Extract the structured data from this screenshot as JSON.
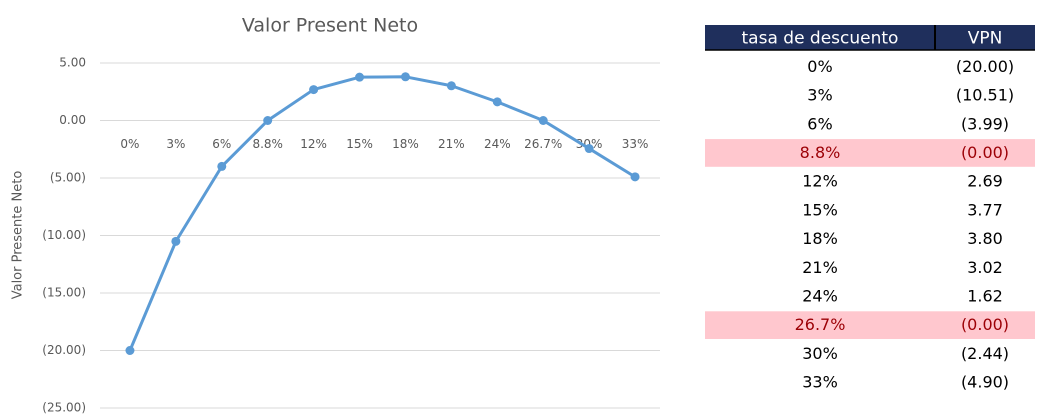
{
  "chart_data": {
    "type": "line",
    "title": "Valor Present Neto",
    "y_label": "Valor Presente Neto",
    "categories": [
      "0%",
      "3%",
      "6%",
      "8.8%",
      "12%",
      "15%",
      "18%",
      "21%",
      "24%",
      "26.7%",
      "30%",
      "33%"
    ],
    "values": [
      -20,
      -10.51,
      -3.99,
      0,
      2.69,
      3.77,
      3.8,
      3.02,
      1.62,
      0,
      -2.44,
      -4.9
    ],
    "color": "#5b9bd5",
    "ylim": [
      -25,
      5
    ],
    "yticks": [
      {
        "value": -25,
        "label": "(25.00)"
      },
      {
        "value": -20,
        "label": "(20.00)"
      },
      {
        "value": -15,
        "label": "(15.00)"
      },
      {
        "value": -10,
        "label": "(10.00)"
      },
      {
        "value": -5,
        "label": "(5.00)"
      },
      {
        "value": 0,
        "label": "0.00"
      },
      {
        "value": 5,
        "label": "5.00"
      }
    ],
    "grid": true
  },
  "table": {
    "header": [
      "tasa de descuento",
      "VPN"
    ],
    "rows": [
      [
        "0%",
        "(20.00)"
      ],
      [
        "3%",
        "(10.51)"
      ],
      [
        "6%",
        "(3.99)"
      ],
      [
        "8.8%",
        "(0.00)"
      ],
      [
        "12%",
        "2.69"
      ],
      [
        "15%",
        "3.77"
      ],
      [
        "18%",
        "3.80"
      ],
      [
        "21%",
        "3.02"
      ],
      [
        "24%",
        "1.62"
      ],
      [
        "26.7%",
        "(0.00)"
      ],
      [
        "30%",
        "(2.44)"
      ],
      [
        "33%",
        "(4.90)"
      ]
    ],
    "highlight_rows": [
      3,
      9
    ]
  }
}
